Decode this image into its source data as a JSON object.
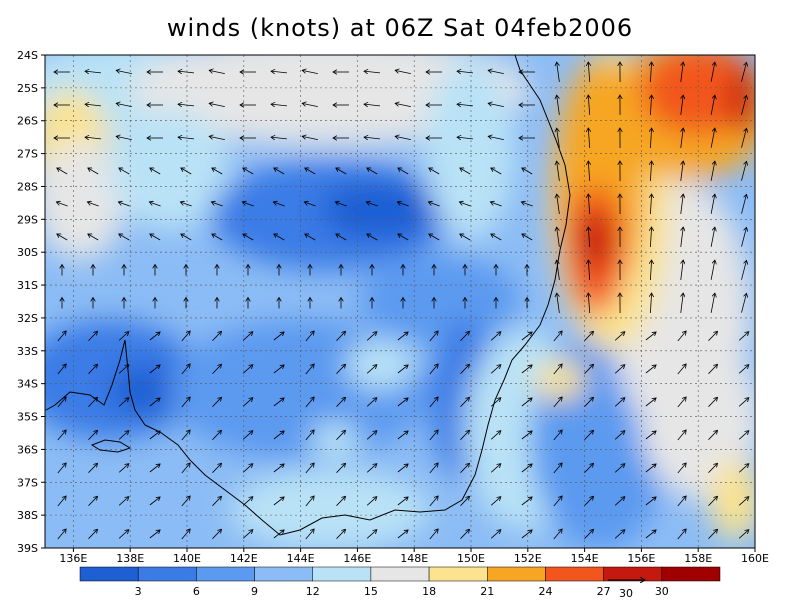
{
  "title": "winds (knots) at 06Z Sat 04feb2006",
  "map": {
    "lat_labels": [
      "24S",
      "25S",
      "26S",
      "27S",
      "28S",
      "29S",
      "30S",
      "31S",
      "32S",
      "33S",
      "34S",
      "35S",
      "36S",
      "37S",
      "38S",
      "39S"
    ],
    "lon_labels": [
      "136E",
      "138E",
      "140E",
      "142E",
      "144E",
      "146E",
      "148E",
      "150E",
      "152E",
      "154E",
      "156E",
      "158E",
      "160E"
    ],
    "lat_range": [
      -39,
      -24
    ],
    "lon_range": [
      135,
      160
    ]
  },
  "colorbar": {
    "labels": [
      "3",
      "6",
      "9",
      "12",
      "15",
      "18",
      "21",
      "24",
      "27",
      "30"
    ],
    "colors": [
      "#1e5fd4",
      "#3a7be6",
      "#5b9af0",
      "#8cbcf5",
      "#b9e2f6",
      "#e6e6e6",
      "#fbe38f",
      "#f6a623",
      "#f2561d",
      "#c5180f",
      "#a00000"
    ]
  },
  "vector_key": {
    "label": "30"
  }
}
